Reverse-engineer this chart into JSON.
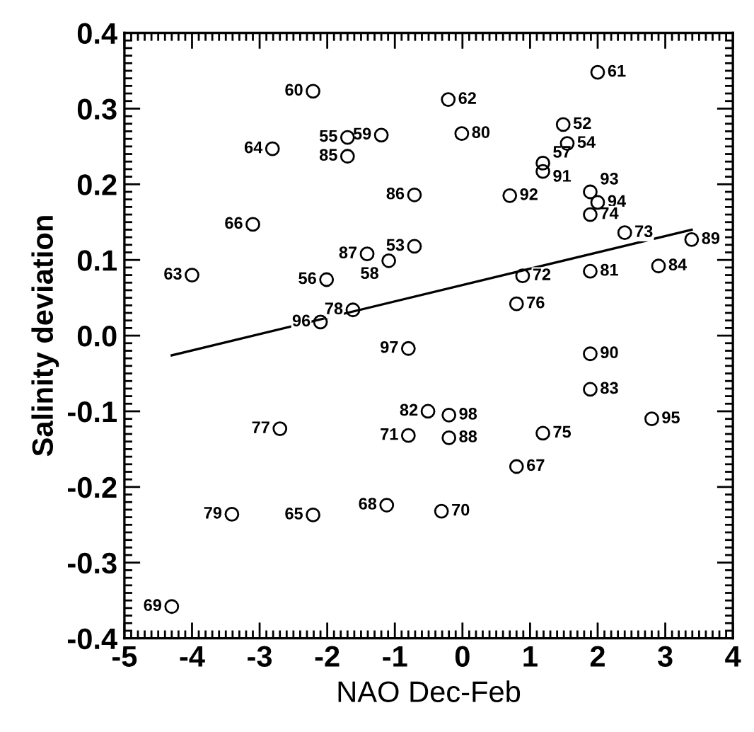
{
  "chart_data": {
    "type": "scatter",
    "xlabel": "NAO Dec-Feb",
    "ylabel": "Salinity deviation",
    "xlim": [
      -5,
      4
    ],
    "ylim": [
      -0.4,
      0.4
    ],
    "xticks": [
      -5,
      -4,
      -3,
      -2,
      -1,
      0,
      1,
      2,
      3,
      4
    ],
    "yticks": [
      {
        "value": -0.4,
        "label": "-0.4"
      },
      {
        "value": -0.3,
        "label": "-0.3"
      },
      {
        "value": -0.2,
        "label": "-0.2"
      },
      {
        "value": -0.1,
        "label": "-0.1"
      },
      {
        "value": 0,
        "label": "0.0"
      },
      {
        "value": 0.1,
        "label": "0.1"
      },
      {
        "value": 0.2,
        "label": "0.2"
      },
      {
        "value": 0.3,
        "label": "0.3"
      },
      {
        "value": 0.4,
        "label": "0.4"
      }
    ],
    "grid": false,
    "legend": false,
    "marker": "circle",
    "series": [
      {
        "color": "#000000",
        "x": [
          -2.21,
          -1.7,
          -1.2,
          -2.81,
          -1.7,
          -3.1,
          -4.0,
          -1.41,
          -0.71,
          -1.09,
          -2.01,
          -1.62,
          -2.1,
          -0.71,
          -0.8,
          2.0,
          -0.21,
          -0.01,
          1.49,
          1.19,
          1.55,
          1.19,
          0.7,
          1.89,
          2.0,
          1.89,
          2.4,
          3.39,
          2.9,
          0.89,
          1.89,
          0.8,
          1.89,
          1.89,
          -0.51,
          -0.2,
          2.8,
          -0.8,
          -0.2,
          1.19,
          0.8,
          -0.31,
          -1.12,
          -2.7,
          -3.41,
          -2.21,
          -4.3
        ],
        "values": [
          0.323,
          0.262,
          0.265,
          0.247,
          0.237,
          0.147,
          0.08,
          0.108,
          0.118,
          0.099,
          0.074,
          0.034,
          0.018,
          0.186,
          -0.017,
          0.348,
          0.312,
          0.267,
          0.279,
          0.228,
          0.254,
          0.217,
          0.185,
          0.19,
          0.176,
          0.16,
          0.136,
          0.127,
          0.092,
          0.079,
          0.085,
          0.042,
          -0.024,
          -0.071,
          -0.1,
          -0.105,
          -0.11,
          -0.132,
          -0.135,
          -0.129,
          -0.173,
          -0.232,
          -0.224,
          -0.123,
          -0.236,
          -0.237,
          -0.358
        ]
      },
      {
        "type": "line",
        "color": "#000000",
        "x": [
          -4.3,
          3.39
        ],
        "values": [
          -0.026,
          0.14
        ],
        "marker": "none",
        "line_style": "solid"
      }
    ],
    "annotations": [
      {
        "text": "60",
        "x": -2.21,
        "y": 0.323
      },
      {
        "text": "55",
        "x": -1.7,
        "y": 0.262
      },
      {
        "text": "59",
        "x": -1.2,
        "y": 0.265
      },
      {
        "text": "64",
        "x": -2.81,
        "y": 0.247
      },
      {
        "text": "85",
        "x": -1.7,
        "y": 0.237
      },
      {
        "text": "66",
        "x": -3.1,
        "y": 0.147
      },
      {
        "text": "63",
        "x": -4.0,
        "y": 0.08
      },
      {
        "text": "87",
        "x": -1.41,
        "y": 0.108
      },
      {
        "text": "53",
        "x": -0.71,
        "y": 0.118
      },
      {
        "text": "58",
        "x": -1.09,
        "y": 0.099
      },
      {
        "text": "56",
        "x": -2.01,
        "y": 0.074
      },
      {
        "text": "78",
        "x": -1.62,
        "y": 0.034
      },
      {
        "text": "96",
        "x": -2.1,
        "y": 0.018
      },
      {
        "text": "86",
        "x": -0.71,
        "y": 0.186
      },
      {
        "text": "97",
        "x": -0.8,
        "y": -0.017
      },
      {
        "text": "61",
        "x": 2.0,
        "y": 0.348
      },
      {
        "text": "62",
        "x": -0.21,
        "y": 0.312
      },
      {
        "text": "80",
        "x": -0.01,
        "y": 0.267
      },
      {
        "text": "52",
        "x": 1.49,
        "y": 0.279
      },
      {
        "text": "57",
        "x": 1.19,
        "y": 0.228
      },
      {
        "text": "54",
        "x": 1.55,
        "y": 0.254
      },
      {
        "text": "91",
        "x": 1.19,
        "y": 0.217
      },
      {
        "text": "92",
        "x": 0.7,
        "y": 0.185
      },
      {
        "text": "93",
        "x": 1.89,
        "y": 0.19
      },
      {
        "text": "94",
        "x": 2.0,
        "y": 0.176
      },
      {
        "text": "74",
        "x": 1.89,
        "y": 0.16
      },
      {
        "text": "73",
        "x": 2.4,
        "y": 0.136
      },
      {
        "text": "89",
        "x": 3.39,
        "y": 0.127
      },
      {
        "text": "84",
        "x": 2.9,
        "y": 0.092
      },
      {
        "text": "72",
        "x": 0.89,
        "y": 0.079
      },
      {
        "text": "81",
        "x": 1.89,
        "y": 0.085
      },
      {
        "text": "76",
        "x": 0.8,
        "y": 0.042
      },
      {
        "text": "90",
        "x": 1.89,
        "y": -0.024
      },
      {
        "text": "83",
        "x": 1.89,
        "y": -0.071
      },
      {
        "text": "82",
        "x": -0.51,
        "y": -0.1
      },
      {
        "text": "98",
        "x": -0.2,
        "y": -0.105
      },
      {
        "text": "95",
        "x": 2.8,
        "y": -0.11
      },
      {
        "text": "71",
        "x": -0.8,
        "y": -0.132
      },
      {
        "text": "88",
        "x": -0.2,
        "y": -0.135
      },
      {
        "text": "75",
        "x": 1.19,
        "y": -0.129
      },
      {
        "text": "67",
        "x": 0.8,
        "y": -0.173
      },
      {
        "text": "70",
        "x": -0.31,
        "y": -0.232
      },
      {
        "text": "68",
        "x": -1.12,
        "y": -0.224
      },
      {
        "text": "77",
        "x": -2.7,
        "y": -0.123
      },
      {
        "text": "79",
        "x": -3.41,
        "y": -0.236
      },
      {
        "text": "65",
        "x": -2.21,
        "y": -0.237
      },
      {
        "text": "69",
        "x": -4.3,
        "y": -0.358
      }
    ]
  }
}
